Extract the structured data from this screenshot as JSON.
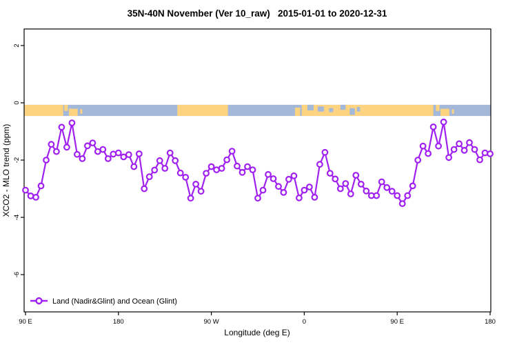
{
  "chart_data": {
    "type": "line",
    "title": "35N-40N November (Ver 10_raw)   2015-01-01 to 2020-12-31",
    "xlabel": "Longitude (deg E)",
    "ylabel": "XCO2 - MLO trend (ppm)",
    "xlim": [
      88.5,
      541.5
    ],
    "ylim": [
      -7.4,
      2.6
    ],
    "grid": false,
    "legend_position": "bottom-left-inside",
    "x_ticks": [
      {
        "pos": 90,
        "label": "90 E"
      },
      {
        "pos": 180,
        "label": "180"
      },
      {
        "pos": 270,
        "label": "90 W"
      },
      {
        "pos": 360,
        "label": "0"
      },
      {
        "pos": 450,
        "label": "90 E"
      },
      {
        "pos": 540,
        "label": "180"
      }
    ],
    "y_ticks": [
      {
        "pos": 2,
        "label": "2"
      },
      {
        "pos": 0,
        "label": "0"
      },
      {
        "pos": -2,
        "label": "-2"
      },
      {
        "pos": -4,
        "label": "-4"
      },
      {
        "pos": -6,
        "label": "-6"
      }
    ],
    "series": [
      {
        "name": "Land (Nadir&Glint) and Ocean (Glint)",
        "color": "#A020F0",
        "marker": "open-circle",
        "line_style": "solid",
        "x": [
          90,
          95,
          100,
          105,
          110,
          115,
          120,
          125,
          130,
          135,
          140,
          145,
          150,
          155,
          160,
          165,
          170,
          175,
          180,
          185,
          190,
          195,
          200,
          205,
          210,
          215,
          220,
          225,
          230,
          235,
          240,
          245,
          250,
          255,
          260,
          265,
          270,
          275,
          280,
          285,
          290,
          295,
          300,
          305,
          310,
          315,
          320,
          325,
          330,
          335,
          340,
          345,
          350,
          355,
          360,
          365,
          370,
          375,
          380,
          385,
          390,
          395,
          400,
          405,
          410,
          415,
          420,
          425,
          430,
          435,
          440,
          445,
          450,
          455,
          460,
          465,
          470,
          475,
          480,
          485,
          490,
          495,
          500,
          505,
          510,
          515,
          520,
          525,
          530,
          535,
          540
        ],
        "y": [
          -3.05,
          -3.25,
          -3.3,
          -2.9,
          -2.0,
          -1.45,
          -1.7,
          -0.85,
          -1.55,
          -0.7,
          -1.8,
          -1.95,
          -1.5,
          -1.4,
          -1.7,
          -1.63,
          -1.95,
          -1.79,
          -1.75,
          -1.89,
          -1.81,
          -2.23,
          -1.78,
          -3.0,
          -2.58,
          -2.35,
          -2.02,
          -2.29,
          -1.75,
          -2.02,
          -2.45,
          -2.6,
          -3.33,
          -2.84,
          -3.09,
          -2.46,
          -2.23,
          -2.34,
          -2.29,
          -1.99,
          -1.69,
          -2.21,
          -2.43,
          -2.23,
          -2.34,
          -3.33,
          -3.05,
          -2.5,
          -2.65,
          -2.92,
          -3.13,
          -2.67,
          -2.55,
          -3.32,
          -3.05,
          -2.94,
          -3.3,
          -2.15,
          -1.73,
          -2.46,
          -2.66,
          -3.0,
          -2.82,
          -3.18,
          -2.53,
          -2.84,
          -3.08,
          -3.24,
          -3.24,
          -2.76,
          -2.96,
          -3.09,
          -3.24,
          -3.52,
          -3.24,
          -2.9,
          -2.0,
          -1.51,
          -1.77,
          -0.84,
          -1.51,
          -0.67,
          -1.91,
          -1.63,
          -1.43,
          -1.66,
          -1.39,
          -1.63,
          -1.99,
          -1.75,
          -1.78
        ]
      }
    ],
    "map_strip": {
      "description": "land-ocean longitude strip at 35N-40N",
      "land_color": "#FBD381",
      "ocean_color": "#A4B8D9",
      "value_top": -0.07,
      "value_bottom": -0.46,
      "segments": [
        {
          "from": 88.5,
          "to": 541.5,
          "type": "ocean",
          "top": 0,
          "bottom": 1
        },
        {
          "from": 88.5,
          "to": 126.5,
          "type": "land",
          "top": 0,
          "bottom": 1
        },
        {
          "from": 127.5,
          "to": 131,
          "type": "land",
          "top": 0,
          "bottom": 0.55
        },
        {
          "from": 132,
          "to": 140.5,
          "type": "land",
          "top": 0.35,
          "bottom": 1
        },
        {
          "from": 143,
          "to": 145,
          "type": "land",
          "top": 0.4,
          "bottom": 0.8
        },
        {
          "from": 237,
          "to": 286,
          "type": "land",
          "top": 0,
          "bottom": 1
        },
        {
          "from": 351,
          "to": 356,
          "type": "land",
          "top": 0.25,
          "bottom": 1
        },
        {
          "from": 357.5,
          "to": 485,
          "type": "land",
          "top": 0,
          "bottom": 1
        },
        {
          "from": 363,
          "to": 369,
          "type": "ocean",
          "top": 0,
          "bottom": 0.5
        },
        {
          "from": 373,
          "to": 379,
          "type": "ocean",
          "top": 0.15,
          "bottom": 0.6
        },
        {
          "from": 384,
          "to": 388,
          "type": "ocean",
          "top": 0.3,
          "bottom": 0.65
        },
        {
          "from": 395,
          "to": 400,
          "type": "ocean",
          "top": 0,
          "bottom": 0.45
        },
        {
          "from": 404,
          "to": 409,
          "type": "ocean",
          "top": 0.3,
          "bottom": 0.9
        },
        {
          "from": 411,
          "to": 414,
          "type": "ocean",
          "top": 0.2,
          "bottom": 0.6
        },
        {
          "from": 487.5,
          "to": 491,
          "type": "land",
          "top": 0,
          "bottom": 0.55
        },
        {
          "from": 492,
          "to": 500.5,
          "type": "land",
          "top": 0.35,
          "bottom": 1
        },
        {
          "from": 503,
          "to": 505,
          "type": "land",
          "top": 0.4,
          "bottom": 0.8
        }
      ]
    },
    "colors": {
      "line": "#A020F0",
      "marker_fill": "#ffffff",
      "box_border": "#000000",
      "background": "#ffffff",
      "text": "#000000"
    }
  }
}
